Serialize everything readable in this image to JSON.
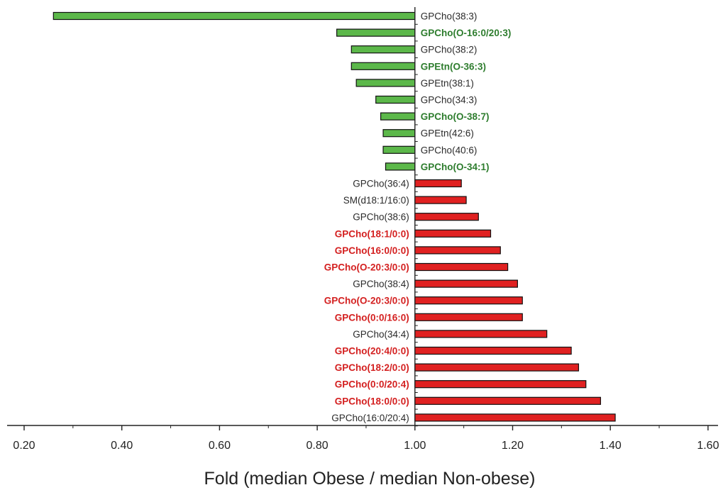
{
  "chart_data": {
    "type": "bar",
    "orientation": "horizontal",
    "baseline": 1.0,
    "title": "",
    "xlabel": "Fold (median Obese / median Non-obese)",
    "ylabel": "",
    "xlim": [
      0.15,
      1.6
    ],
    "x_ticks": [
      "0.20",
      "0.40",
      "0.60",
      "0.80",
      "1.00",
      "1.20",
      "1.40",
      "1.60"
    ],
    "x_tick_values": [
      0.2,
      0.4,
      0.6,
      0.8,
      1.0,
      1.2,
      1.4,
      1.6
    ],
    "colors": {
      "decrease_fill": "#5cb84a",
      "increase_fill": "#e02121",
      "bold_decrease_text": "#2e7d2e",
      "bold_increase_text": "#d42020",
      "normal_text": "#2a2a2a"
    },
    "categories": [
      "GPCho(38:3)",
      "GPCho(O-16:0/20:3)",
      "GPCho(38:2)",
      "GPEtn(O-36:3)",
      "GPEtn(38:1)",
      "GPCho(34:3)",
      "GPCho(O-38:7)",
      "GPEtn(42:6)",
      "GPCho(40:6)",
      "GPCho(O-34:1)",
      "GPCho(36:4)",
      "SM(d18:1/16:0)",
      "GPCho(38:6)",
      "GPCho(18:1/0:0)",
      "GPCho(16:0/0:0)",
      "GPCho(O-20:3/0:0)",
      "GPCho(38:4)",
      "GPCho(O-20:3/0:0)",
      "GPCho(0:0/16:0)",
      "GPCho(34:4)",
      "GPCho(20:4/0:0)",
      "GPCho(18:2/0:0)",
      "GPCho(0:0/20:4)",
      "GPCho(18:0/0:0)",
      "GPCho(16:0/20:4)"
    ],
    "values": [
      0.26,
      0.84,
      0.87,
      0.87,
      0.88,
      0.92,
      0.93,
      0.935,
      0.935,
      0.94,
      1.095,
      1.105,
      1.13,
      1.155,
      1.175,
      1.19,
      1.21,
      1.22,
      1.22,
      1.27,
      1.32,
      1.335,
      1.35,
      1.38,
      1.41
    ],
    "bold": [
      false,
      true,
      false,
      true,
      false,
      false,
      true,
      false,
      false,
      true,
      false,
      false,
      false,
      true,
      true,
      true,
      false,
      true,
      true,
      false,
      true,
      true,
      true,
      true,
      false
    ]
  }
}
